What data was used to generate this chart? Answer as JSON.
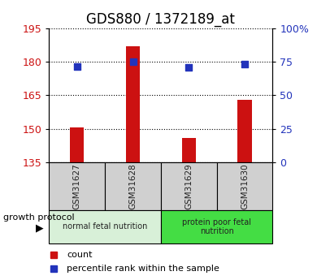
{
  "title": "GDS880 / 1372189_at",
  "samples": [
    "GSM31627",
    "GSM31628",
    "GSM31629",
    "GSM31630"
  ],
  "counts": [
    150.5,
    187.0,
    146.0,
    163.0
  ],
  "percentiles": [
    71.5,
    75.0,
    70.5,
    73.0
  ],
  "ylim_left": [
    135,
    195
  ],
  "ylim_right": [
    0,
    100
  ],
  "yticks_left": [
    135,
    150,
    165,
    180,
    195
  ],
  "yticks_right": [
    0,
    25,
    50,
    75,
    100
  ],
  "bar_color": "#cc1111",
  "dot_color": "#2233bb",
  "groups": [
    {
      "label": "normal fetal nutrition",
      "samples": [
        0,
        1
      ],
      "color": "#d8f0d8"
    },
    {
      "label": "protein poor fetal\nnutrition",
      "samples": [
        2,
        3
      ],
      "color": "#44dd44"
    }
  ],
  "group_label": "growth protocol",
  "legend_count_label": "count",
  "legend_pct_label": "percentile rank within the sample",
  "title_fontsize": 12,
  "tick_fontsize": 9,
  "bar_width": 0.25
}
